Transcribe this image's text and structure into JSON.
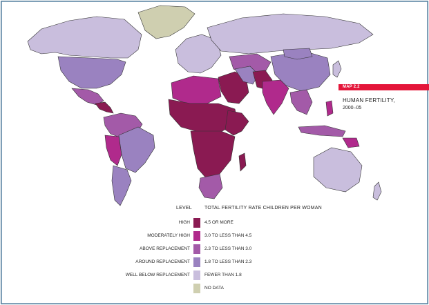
{
  "map": {
    "badge": "MAP 2.2",
    "title": "HUMAN FERTILITY,",
    "years": "2000–05"
  },
  "legend": {
    "level_header": "LEVEL",
    "rate_header": "TOTAL FERTILITY RATE  CHILDREN PER WOMAN",
    "rows": [
      {
        "level": "HIGH",
        "range": "4.5 OR MORE",
        "color": "#8a1a52"
      },
      {
        "level": "MODERATELY HIGH",
        "range": "3.0 TO LESS THAN 4.5",
        "color": "#b02a8c"
      },
      {
        "level": "ABOVE REPLACEMENT",
        "range": "2.3 TO LESS THAN 3.0",
        "color": "#a35aa8"
      },
      {
        "level": "AROUND REPLACEMENT",
        "range": "1.8 TO LESS THAN 2.3",
        "color": "#9a82c0"
      },
      {
        "level": "WELL BELOW REPLACEMENT",
        "range": "FEWER THAN 1.8",
        "color": "#c9bedd"
      },
      {
        "level": "",
        "range": "NO DATA",
        "color": "#cfcfb0"
      }
    ]
  }
}
